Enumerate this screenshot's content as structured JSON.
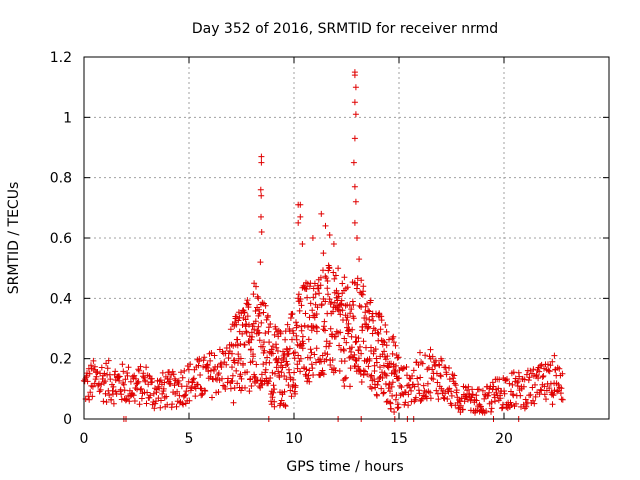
{
  "chart_data": {
    "type": "scatter",
    "title": "Day 352 of 2016, SRMTID for receiver nrmd",
    "xlabel": "GPS time / hours",
    "ylabel": "SRMTID / TECUs",
    "xlim": [
      0,
      25
    ],
    "ylim": [
      0,
      1.2
    ],
    "xticks": [
      0,
      5,
      10,
      15,
      20
    ],
    "xtick_labels": [
      "0",
      "5",
      "10",
      "15",
      "20"
    ],
    "yticks": [
      0,
      0.2,
      0.4,
      0.6,
      0.8,
      1.0,
      1.2
    ],
    "ytick_labels": [
      "0",
      "0.2",
      "0.4",
      "0.6",
      "0.8",
      "1",
      "1.2"
    ],
    "grid": true,
    "marker": "+",
    "color": "#e00000",
    "series": [
      {
        "name": "SRMTID",
        "baseline": [
          [
            0.0,
            0.1
          ],
          [
            0.5,
            0.12
          ],
          [
            1.0,
            0.12
          ],
          [
            1.5,
            0.11
          ],
          [
            2.0,
            0.11
          ],
          [
            2.5,
            0.1
          ],
          [
            3.0,
            0.11
          ],
          [
            3.3,
            0.08
          ],
          [
            3.8,
            0.09
          ],
          [
            4.3,
            0.09
          ],
          [
            4.8,
            0.11
          ],
          [
            5.3,
            0.12
          ],
          [
            5.8,
            0.13
          ],
          [
            6.3,
            0.15
          ],
          [
            6.8,
            0.16
          ],
          [
            7.3,
            0.19
          ],
          [
            7.8,
            0.23
          ],
          [
            8.2,
            0.28
          ],
          [
            8.6,
            0.22
          ],
          [
            9.0,
            0.16
          ],
          [
            9.5,
            0.15
          ],
          [
            10.0,
            0.22
          ],
          [
            10.5,
            0.27
          ],
          [
            11.0,
            0.28
          ],
          [
            11.5,
            0.32
          ],
          [
            12.0,
            0.28
          ],
          [
            12.5,
            0.25
          ],
          [
            13.0,
            0.28
          ],
          [
            13.5,
            0.24
          ],
          [
            14.0,
            0.2
          ],
          [
            14.5,
            0.16
          ],
          [
            15.0,
            0.11
          ],
          [
            15.5,
            0.1
          ],
          [
            16.0,
            0.12
          ],
          [
            16.5,
            0.14
          ],
          [
            17.0,
            0.13
          ],
          [
            17.5,
            0.09
          ],
          [
            18.0,
            0.06
          ],
          [
            18.5,
            0.05
          ],
          [
            19.0,
            0.05
          ],
          [
            19.5,
            0.07
          ],
          [
            20.0,
            0.09
          ],
          [
            20.5,
            0.09
          ],
          [
            21.0,
            0.09
          ],
          [
            21.5,
            0.1
          ],
          [
            22.0,
            0.11
          ],
          [
            22.5,
            0.11
          ],
          [
            22.8,
            0.11
          ]
        ],
        "peaks": [
          [
            8.45,
            0.87
          ],
          [
            8.45,
            0.85
          ],
          [
            8.42,
            0.76
          ],
          [
            8.44,
            0.74
          ],
          [
            8.43,
            0.67
          ],
          [
            8.46,
            0.62
          ],
          [
            8.4,
            0.52
          ],
          [
            8.3,
            0.4
          ],
          [
            8.1,
            0.45
          ],
          [
            10.2,
            0.71
          ],
          [
            10.3,
            0.71
          ],
          [
            10.3,
            0.67
          ],
          [
            10.2,
            0.65
          ],
          [
            10.4,
            0.58
          ],
          [
            10.9,
            0.6
          ],
          [
            11.3,
            0.68
          ],
          [
            11.5,
            0.64
          ],
          [
            11.7,
            0.61
          ],
          [
            11.4,
            0.55
          ],
          [
            11.9,
            0.58
          ],
          [
            12.1,
            0.5
          ],
          [
            12.4,
            0.47
          ],
          [
            12.9,
            1.15
          ],
          [
            12.9,
            1.14
          ],
          [
            12.95,
            1.1
          ],
          [
            12.9,
            1.05
          ],
          [
            12.95,
            1.01
          ],
          [
            12.9,
            0.93
          ],
          [
            12.85,
            0.85
          ],
          [
            12.9,
            0.77
          ],
          [
            12.95,
            0.72
          ],
          [
            12.9,
            0.65
          ],
          [
            13.0,
            0.6
          ],
          [
            13.1,
            0.53
          ],
          [
            13.2,
            0.46
          ],
          [
            13.3,
            0.44
          ],
          [
            16.0,
            0.22
          ],
          [
            16.5,
            0.23
          ],
          [
            17.0,
            0.2
          ],
          [
            22.4,
            0.21
          ],
          [
            22.3,
            0.19
          ]
        ],
        "zeros": [
          1.9,
          2.0,
          8.8,
          12.1,
          13.2,
          14.8,
          15.4,
          15.7,
          19.5,
          20.7
        ]
      }
    ]
  }
}
